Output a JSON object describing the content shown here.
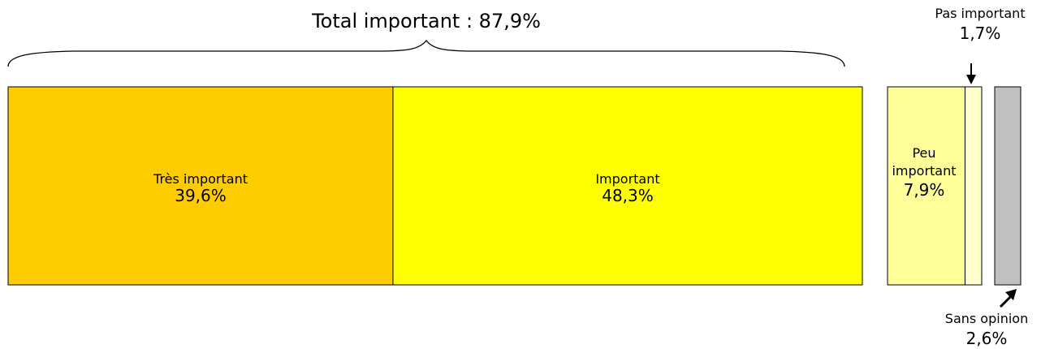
{
  "chart_data": {
    "type": "bar",
    "orientation": "horizontal-stacked",
    "title": "Total important : 87,9%",
    "segments": [
      {
        "name": "Très important",
        "value": 39.6,
        "label": "39,6%",
        "color": "#ffcc00"
      },
      {
        "name": "Important",
        "value": 48.3,
        "label": "48,3%",
        "color": "#ffff00"
      },
      {
        "name": "Peu important",
        "name_line1": "Peu",
        "name_line2": "important",
        "value": 7.9,
        "label": "7,9%",
        "color": "#ffff99"
      },
      {
        "name": "Pas important",
        "value": 1.7,
        "label": "1,7%",
        "color": "#ffffcc"
      },
      {
        "name": "Sans opinion",
        "value": 2.6,
        "label": "2,6%",
        "color": "#c0c0c0"
      }
    ],
    "group_total": {
      "label": "Total important : 87,9%",
      "value": 87.9
    },
    "grid": false,
    "legend": "none"
  }
}
